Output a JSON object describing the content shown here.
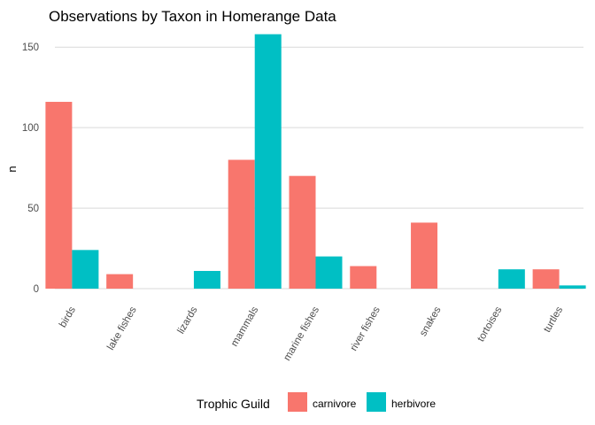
{
  "chart_data": {
    "type": "bar",
    "title": "Observations by Taxon in Homerange Data",
    "xlabel": "",
    "ylabel": "n",
    "categories": [
      "birds",
      "lake fishes",
      "lizards",
      "mammals",
      "marine fishes",
      "river fishes",
      "snakes",
      "tortoises",
      "turtles"
    ],
    "series": [
      {
        "name": "carnivore",
        "color": "#F8766D",
        "values": [
          116,
          9,
          null,
          80,
          70,
          14,
          41,
          null,
          12
        ]
      },
      {
        "name": "herbivore",
        "color": "#00BFC4",
        "values": [
          24,
          null,
          11,
          158,
          20,
          null,
          null,
          12,
          2
        ]
      }
    ],
    "yticks": [
      0,
      50,
      100,
      150
    ],
    "ylim": [
      0,
      160
    ],
    "grid": true,
    "legend": {
      "title": "Trophic Guild",
      "position": "bottom"
    }
  }
}
